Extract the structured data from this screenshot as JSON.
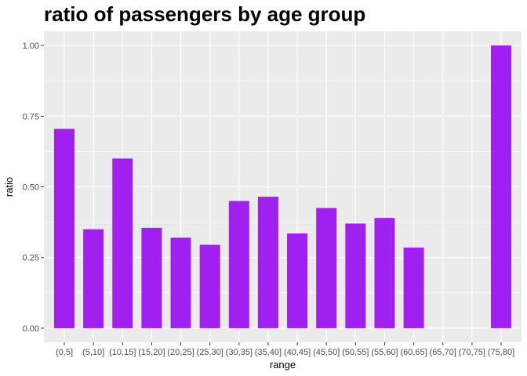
{
  "chart_data": {
    "type": "bar",
    "title": "ratio of passengers by age group",
    "xlabel": "range",
    "ylabel": "ratio",
    "categories": [
      "(0,5]",
      "(5,10]",
      "(10,15]",
      "(15,20]",
      "(20,25]",
      "(25,30]",
      "(30,35]",
      "(35,40]",
      "(40,45]",
      "(45,50]",
      "(50,55]",
      "(55,60]",
      "(60,65]",
      "(65,70]",
      "(70,75]",
      "(75,80]"
    ],
    "values": [
      0.705,
      0.35,
      0.6,
      0.355,
      0.32,
      0.295,
      0.45,
      0.465,
      0.335,
      0.425,
      0.37,
      0.39,
      0.285,
      0,
      0,
      1.0
    ],
    "ylim": [
      -0.05,
      1.05
    ],
    "yticks": [
      0.0,
      0.25,
      0.5,
      0.75,
      1.0
    ],
    "ytick_labels": [
      "0.00",
      "0.25",
      "0.50",
      "0.75",
      "1.00"
    ],
    "bar_color": "#A020F0",
    "panel_background": "#EBEBEB",
    "grid": true,
    "legend": "none"
  }
}
